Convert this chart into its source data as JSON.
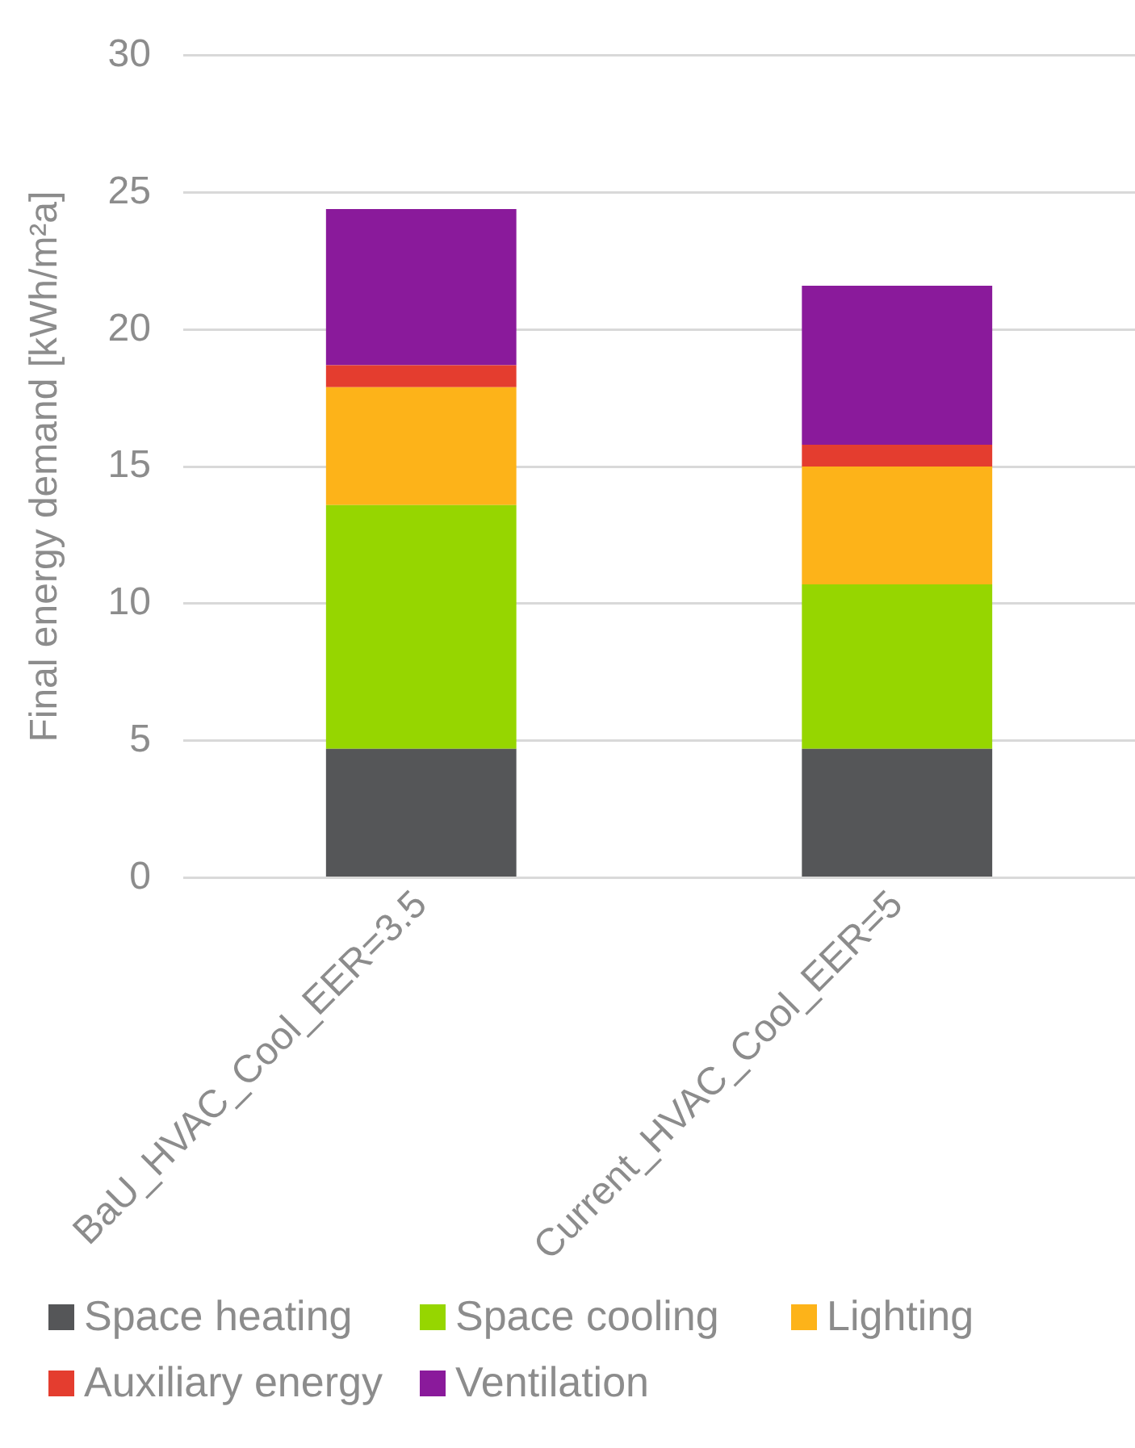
{
  "chart_data": {
    "type": "bar",
    "stacked": true,
    "ylabel": "Final energy demand [kWh/m²a]",
    "categories": [
      "BaU_HVAC_Cool_EER=3.5",
      "Current_HVAC_Cool_EER=5"
    ],
    "series": [
      {
        "name": "Space heating",
        "color": "#555658",
        "values": [
          4.7,
          4.7
        ]
      },
      {
        "name": "Space cooling",
        "color": "#96d600",
        "values": [
          8.9,
          6.0
        ]
      },
      {
        "name": "Lighting",
        "color": "#fdb319",
        "values": [
          4.3,
          4.3
        ]
      },
      {
        "name": "Auxiliary energy",
        "color": "#e43d2f",
        "values": [
          0.8,
          0.8
        ]
      },
      {
        "name": "Ventilation",
        "color": "#8a1a9b",
        "values": [
          5.7,
          5.8
        ]
      }
    ],
    "ylim": [
      0,
      30
    ],
    "yticks": [
      0,
      5,
      10,
      15,
      20,
      25,
      30
    ],
    "grid": "y",
    "legend": "bottom"
  }
}
